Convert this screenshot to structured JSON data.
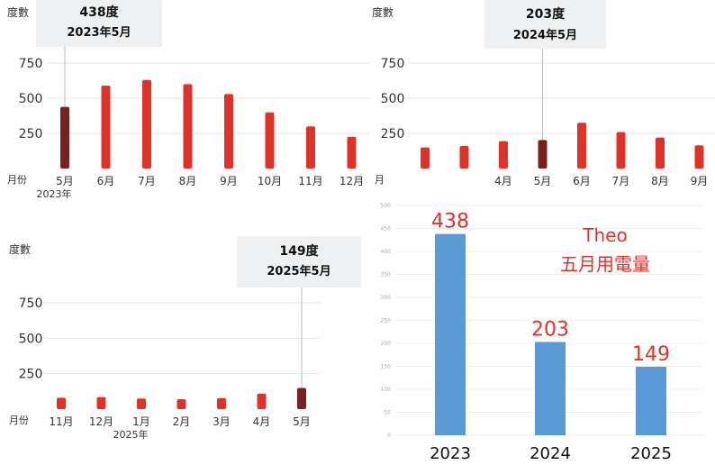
{
  "colors": {
    "bar": "#e03328",
    "bar_selected": "#7a2020",
    "bar_blue": "#5b9bd5",
    "tooltip_bg": "#eef0f2",
    "grid": "#e4e4e4",
    "axis_text": "#333333",
    "annotation": "#e03328"
  },
  "chart_data": [
    {
      "type": "bar",
      "ylabel": "度數",
      "xlabel": "月份",
      "yticks": [
        250,
        500,
        750
      ],
      "ylim": [
        0,
        900
      ],
      "categories": [
        "5月",
        "6月",
        "7月",
        "8月",
        "9月",
        "10月",
        "11月",
        "12月"
      ],
      "values": [
        438,
        590,
        630,
        600,
        530,
        400,
        300,
        225
      ],
      "year_label": "2023年",
      "selected_index": 0,
      "tooltip": {
        "value": "438度",
        "date": "2023年5月"
      }
    },
    {
      "type": "bar",
      "ylabel": "度數",
      "xlabel": "月",
      "yticks": [
        250,
        500,
        750
      ],
      "ylim": [
        0,
        900
      ],
      "categories": [
        "",
        "",
        "4月",
        "5月",
        "6月",
        "7月",
        "8月",
        "9月"
      ],
      "values": [
        150,
        160,
        195,
        203,
        325,
        260,
        220,
        165
      ],
      "selected_index": 3,
      "tooltip": {
        "value": "203度",
        "date": "2024年5月"
      }
    },
    {
      "type": "bar",
      "ylabel": "度數",
      "xlabel": "月份",
      "yticks": [
        250,
        500,
        750
      ],
      "ylim": [
        0,
        900
      ],
      "categories": [
        "11月",
        "12月",
        "1月",
        "2月",
        "3月",
        "4月",
        "5月"
      ],
      "values": [
        80,
        85,
        75,
        70,
        78,
        110,
        149
      ],
      "year_label": "2025年",
      "selected_index": 6,
      "tooltip": {
        "value": "149度",
        "date": "2025年5月"
      }
    },
    {
      "type": "bar",
      "yticks": [
        0,
        50,
        100,
        150,
        200,
        250,
        300,
        350,
        400,
        450,
        500
      ],
      "ylim": [
        0,
        500
      ],
      "categories": [
        "2023",
        "2024",
        "2025"
      ],
      "values": [
        438,
        203,
        149
      ],
      "data_labels": [
        "438",
        "203",
        "149"
      ],
      "annotation": [
        "Theo",
        "五月用電量"
      ]
    }
  ]
}
